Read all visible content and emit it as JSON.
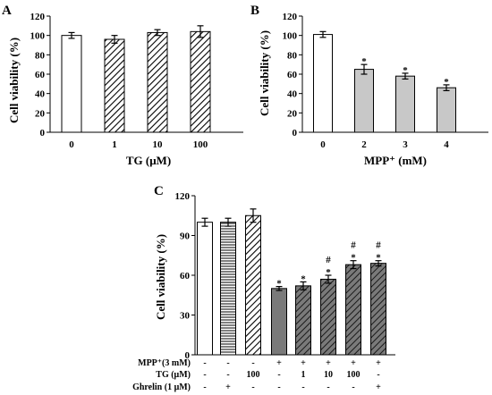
{
  "colors": {
    "axis": "#000000",
    "white_fill": "#ffffff",
    "gray_fill": "#c8c8c8",
    "dark_fill": "#7a7a7a"
  },
  "chart_data": [
    {
      "panel": "A",
      "type": "bar",
      "categories": [
        "0",
        "1",
        "10",
        "100"
      ],
      "values": [
        100,
        96,
        103,
        104
      ],
      "errors": [
        3,
        4,
        3,
        6
      ],
      "fills": [
        "white",
        "hatch",
        "hatch",
        "hatch"
      ],
      "significance": [
        "",
        "",
        "",
        ""
      ],
      "ylabel": "Cell viability (%)",
      "xlabel": "TG (μM)",
      "ylim": [
        0,
        120
      ],
      "yticks": [
        "0",
        "20",
        "40",
        "60",
        "80",
        "100",
        "120"
      ]
    },
    {
      "panel": "B",
      "type": "bar",
      "categories": [
        "0",
        "2",
        "3",
        "4"
      ],
      "values": [
        101,
        65,
        58,
        46
      ],
      "errors": [
        3,
        5,
        3,
        3
      ],
      "fills": [
        "white",
        "gray",
        "gray",
        "gray"
      ],
      "significance": [
        "",
        "*",
        "*",
        "*"
      ],
      "ylabel": "Cell viability (%)",
      "xlabel": "MPP⁺ (mM)",
      "ylim": [
        0,
        120
      ],
      "yticks": [
        "0",
        "20",
        "40",
        "60",
        "80",
        "100",
        "120"
      ]
    },
    {
      "panel": "C",
      "type": "bar",
      "values": [
        100,
        100,
        105,
        50,
        52,
        57,
        68,
        69
      ],
      "errors": [
        3,
        3,
        5,
        1.5,
        3,
        3,
        3,
        2
      ],
      "fills": [
        "white",
        "hlines",
        "hatch",
        "dark",
        "darkhatch",
        "darkhatch",
        "darkhatch",
        "darkhatch"
      ],
      "significance": [
        "",
        "",
        "",
        "*",
        "*",
        "#\n*",
        "#\n*",
        "#\n*"
      ],
      "ylabel": "Cell viability (%)",
      "ylim": [
        0,
        120
      ],
      "yticks": [
        "0",
        "30",
        "60",
        "90",
        "120"
      ],
      "conditions": [
        {
          "label": "MPP⁺(3 mM)",
          "values": [
            "-",
            "-",
            "-",
            "+",
            "+",
            "+",
            "+",
            "+"
          ]
        },
        {
          "label": "TG (μM)",
          "values": [
            "-",
            "-",
            "100",
            "-",
            "1",
            "10",
            "100",
            "-"
          ]
        },
        {
          "label": "Ghrelin (1 μM)",
          "values": [
            "-",
            "+",
            "-",
            "-",
            "-",
            "-",
            "-",
            "+"
          ]
        }
      ]
    }
  ]
}
